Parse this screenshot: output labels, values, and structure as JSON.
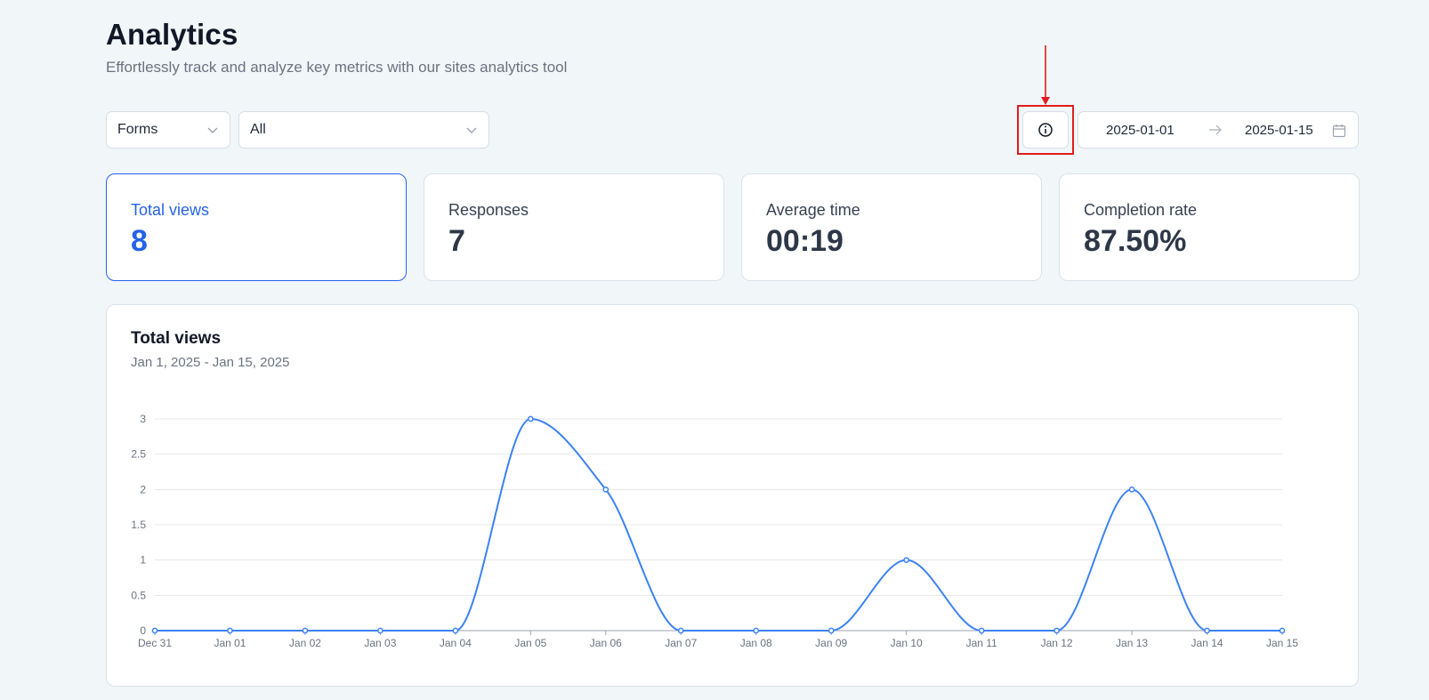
{
  "header": {
    "title": "Analytics",
    "subtitle": "Effortlessly track and analyze key metrics with our sites analytics tool"
  },
  "filters": {
    "type_select": {
      "value": "Forms"
    },
    "item_select": {
      "value": "All"
    },
    "info_icon": "info-circle-icon",
    "date_range": {
      "start": "2025-01-01",
      "arrow": "→",
      "end": "2025-01-15",
      "icon": "calendar-icon"
    }
  },
  "stats": [
    {
      "label": "Total views",
      "value": "8"
    },
    {
      "label": "Responses",
      "value": "7"
    },
    {
      "label": "Average time",
      "value": "00:19"
    },
    {
      "label": "Completion rate",
      "value": "87.50%"
    }
  ],
  "chart": {
    "title": "Total views",
    "subtitle": "Jan 1, 2025 - Jan 15, 2025"
  },
  "colors": {
    "accent": "#2563eb",
    "line": "#3b82f6",
    "annotation": "#e11d1d"
  },
  "chart_data": {
    "type": "line",
    "categories": [
      "Dec 31",
      "Jan 01",
      "Jan 02",
      "Jan 03",
      "Jan 04",
      "Jan 05",
      "Jan 06",
      "Jan 07",
      "Jan 08",
      "Jan 09",
      "Jan 10",
      "Jan 11",
      "Jan 12",
      "Jan 13",
      "Jan 14",
      "Jan 15"
    ],
    "values": [
      0,
      0,
      0,
      0,
      0,
      3,
      2,
      0,
      0,
      0,
      1,
      0,
      0,
      2,
      0,
      0
    ],
    "yticks": [
      "0",
      "0.5",
      "1",
      "1.5",
      "2",
      "2.5",
      "3"
    ],
    "ylim": [
      0,
      3
    ],
    "grid": true,
    "smooth": true,
    "xlabel": "",
    "ylabel": ""
  }
}
